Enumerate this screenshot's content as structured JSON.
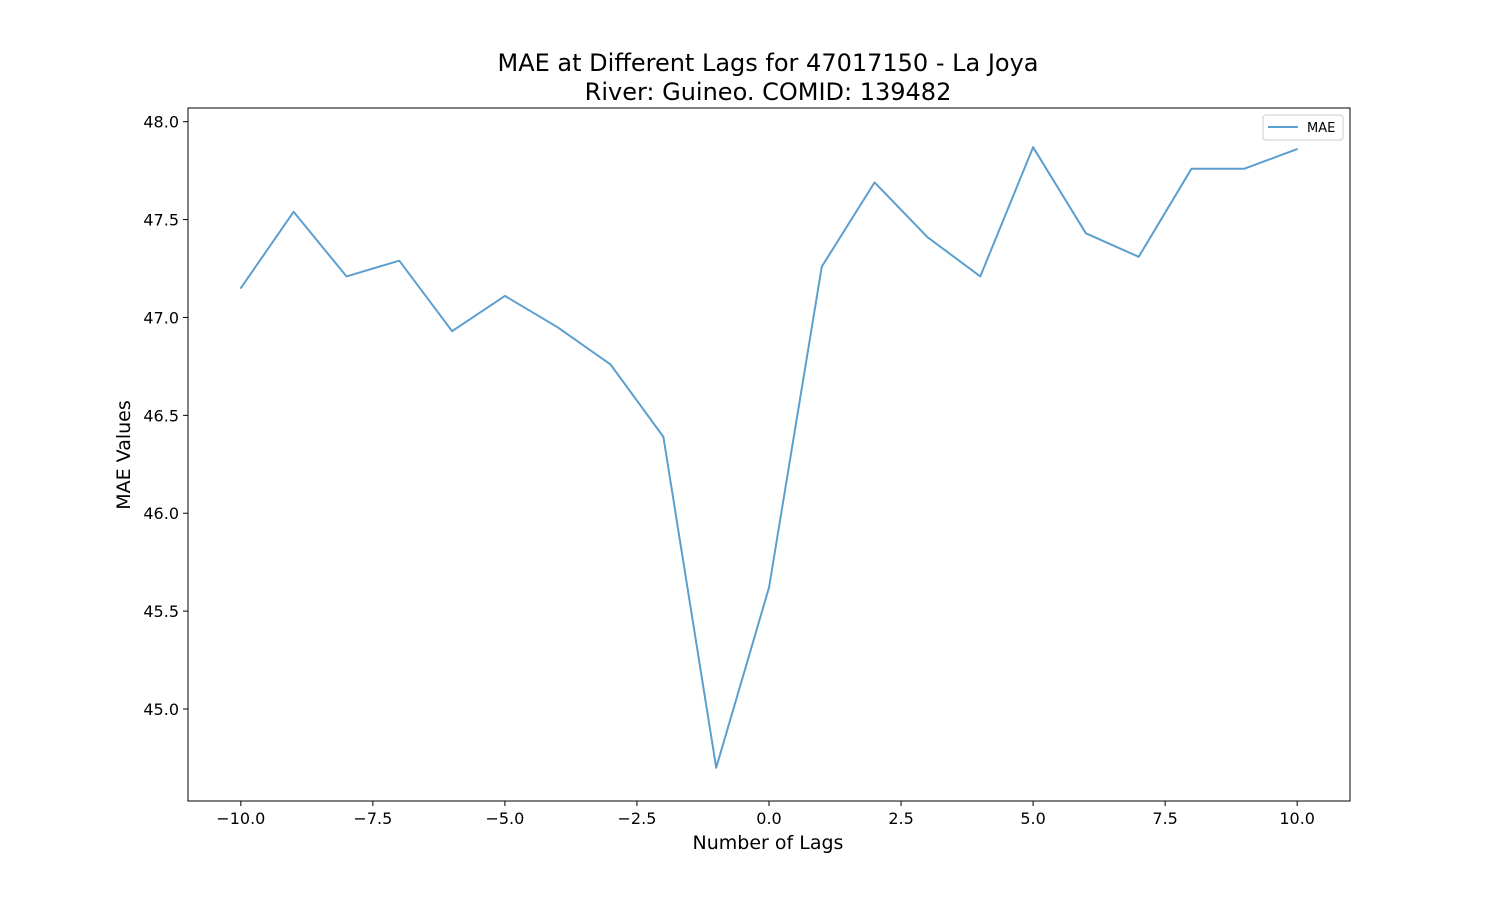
{
  "chart_data": {
    "type": "line",
    "title_line1": "MAE at Different Lags for 47017150 - La Joya",
    "title_line2": "River: Guineo. COMID: 139482",
    "xlabel": "Number of Lags",
    "ylabel": "MAE Values",
    "xlim": [
      -11,
      11
    ],
    "ylim": [
      44.53,
      48.07
    ],
    "x_ticks": [
      -10.0,
      -7.5,
      -5.0,
      -2.5,
      0.0,
      2.5,
      5.0,
      7.5,
      10.0
    ],
    "x_tick_labels": [
      "−10.0",
      "−7.5",
      "−5.0",
      "−2.5",
      "0.0",
      "2.5",
      "5.0",
      "7.5",
      "10.0"
    ],
    "y_ticks": [
      45.0,
      45.5,
      46.0,
      46.5,
      47.0,
      47.5,
      48.0
    ],
    "y_tick_labels": [
      "45.0",
      "45.5",
      "46.0",
      "46.5",
      "47.0",
      "47.5",
      "48.0"
    ],
    "legend_position": "top-right",
    "grid": false,
    "series": [
      {
        "name": "MAE",
        "color": "#5b9fce",
        "x": [
          -10,
          -9,
          -8,
          -7,
          -6,
          -5,
          -4,
          -3,
          -2,
          -1,
          0,
          1,
          2,
          3,
          4,
          5,
          6,
          7,
          8,
          9,
          10
        ],
        "values": [
          47.15,
          47.54,
          47.21,
          47.29,
          46.93,
          47.11,
          46.95,
          46.76,
          46.39,
          44.7,
          45.62,
          47.26,
          47.69,
          47.41,
          47.21,
          47.87,
          47.43,
          47.31,
          47.76,
          47.76,
          47.86
        ]
      }
    ]
  }
}
